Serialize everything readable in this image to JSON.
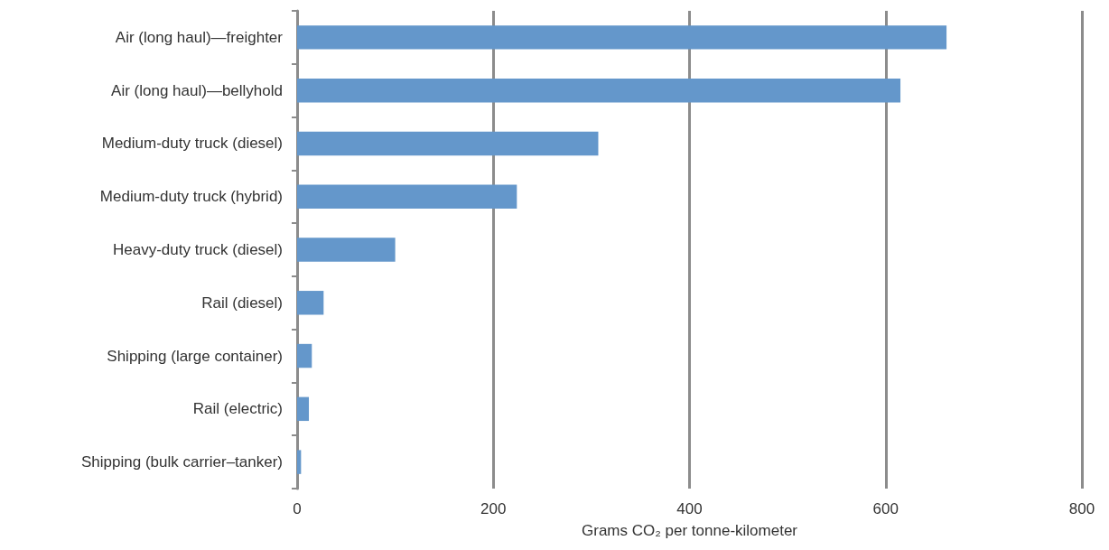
{
  "chart_data": {
    "type": "bar",
    "orientation": "horizontal",
    "xlabel": "Grams CO₂ per tonne-kilometer",
    "categories": [
      "Air (long haul)—freighter",
      "Air (long haul)—bellyhold",
      "Medium-duty truck (diesel)",
      "Medium-duty truck (hybrid)",
      "Heavy-duty truck (diesel)",
      "Rail (diesel)",
      "Shipping (large container)",
      "Rail (electric)",
      "Shipping (bulk carrier–tanker)"
    ],
    "values": [
      662,
      615,
      307,
      224,
      100,
      27,
      15,
      12,
      4
    ],
    "color": "#6497cb",
    "xlim": [
      0,
      800
    ],
    "xticks": [
      0,
      200,
      400,
      600,
      800
    ],
    "grid": "x"
  }
}
